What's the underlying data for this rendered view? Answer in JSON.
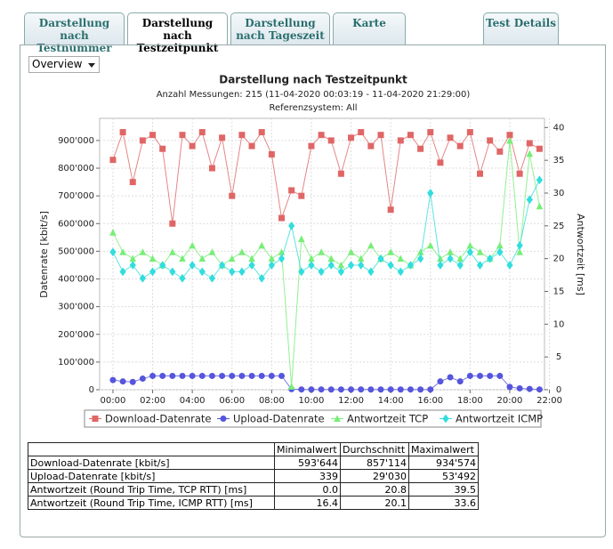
{
  "tabs": [
    "Darstellung nach Testnummer",
    "Darstellung nach Testzeitpunkt",
    "Darstellung nach Tageszeit",
    "Karte",
    "Test Details"
  ],
  "active_tab": 1,
  "dropdown": "Overview",
  "chart_data": {
    "type": "line",
    "title": "Darstellung nach Testzeitpunkt",
    "subtitle": "Anzahl Messungen: 215 (11-04-2020 00:03:19 - 11-04-2020 21:29:00)",
    "subtitle2": "Referenzsystem: All",
    "ylabel": "Datenrate [kbit/s]",
    "y2label": "Antwortzeit [ms]",
    "x": [
      0,
      0.5,
      1,
      1.5,
      2,
      2.5,
      3,
      3.5,
      4,
      4.5,
      5,
      5.5,
      6,
      6.5,
      7,
      7.5,
      8,
      8.5,
      9,
      9.5,
      10,
      10.5,
      11,
      11.5,
      12,
      12.5,
      13,
      13.5,
      14,
      14.5,
      15,
      15.5,
      16,
      16.5,
      17,
      17.5,
      18,
      18.5,
      19,
      19.5,
      20,
      20.5,
      21,
      21.5
    ],
    "xlim": [
      -0.67,
      21.75
    ],
    "xticks": [
      {
        "value": 0,
        "label": "00:00"
      },
      {
        "value": 2,
        "label": "02:00"
      },
      {
        "value": 4,
        "label": "04:00"
      },
      {
        "value": 6,
        "label": "06:00"
      },
      {
        "value": 8,
        "label": "08:00"
      },
      {
        "value": 10,
        "label": "10:00"
      },
      {
        "value": 12,
        "label": "12:00"
      },
      {
        "value": 14,
        "label": "14:00"
      },
      {
        "value": 16,
        "label": "16:00"
      },
      {
        "value": 18,
        "label": "18:00"
      },
      {
        "value": 20,
        "label": "20:00"
      },
      {
        "value": 22,
        "label": "22:00"
      }
    ],
    "ylim": [
      0,
      980000
    ],
    "yticks": [
      0,
      {
        "value": 100000,
        "label": "100'000"
      },
      {
        "value": 200000,
        "label": "200'000"
      },
      {
        "value": 300000,
        "label": "300'000"
      },
      {
        "value": 400000,
        "label": "400'000"
      },
      {
        "value": 500000,
        "label": "500'000"
      },
      {
        "value": 600000,
        "label": "600'000"
      },
      {
        "value": 700000,
        "label": "700'000"
      },
      {
        "value": 800000,
        "label": "800'000"
      },
      {
        "value": 900000,
        "label": "900'000"
      }
    ],
    "y2lim": [
      0,
      41.4
    ],
    "y2ticks": [
      0,
      5,
      10,
      15,
      20,
      25,
      30,
      35,
      40
    ],
    "grid": true,
    "legend": "bottom",
    "series": [
      {
        "name": "Download-Datenrate",
        "color": "#e06666",
        "marker": "square",
        "values": [
          830000,
          930000,
          750000,
          900000,
          920000,
          870000,
          600000,
          920000,
          880000,
          930000,
          800000,
          910000,
          700000,
          920000,
          880000,
          930000,
          850000,
          620000,
          720000,
          700000,
          880000,
          920000,
          900000,
          780000,
          910000,
          930000,
          880000,
          920000,
          650000,
          900000,
          920000,
          870000,
          930000,
          820000,
          910000,
          880000,
          930000,
          780000,
          900000,
          860000,
          920000,
          780000,
          890000,
          870000
        ]
      },
      {
        "name": "Upload-Datenrate",
        "color": "#5555dd",
        "marker": "circle",
        "values": [
          35000,
          30000,
          28000,
          40000,
          50000,
          50000,
          50000,
          50000,
          50000,
          50000,
          50000,
          50000,
          50000,
          50000,
          50000,
          50000,
          50000,
          50000,
          2000,
          1000,
          800,
          1000,
          900,
          1000,
          700,
          1000,
          900,
          800,
          1000,
          900,
          1000,
          800,
          1000,
          30000,
          45000,
          30000,
          50000,
          50000,
          50000,
          50000,
          10000,
          5000,
          3000,
          1000
        ]
      },
      {
        "name": "Antwortzeit TCP",
        "color": "#77ee77",
        "marker": "triangle",
        "axis": "y2",
        "values": [
          24,
          21,
          20,
          21,
          20,
          19,
          21,
          20,
          22,
          20,
          21,
          19,
          20,
          21,
          20,
          22,
          20,
          21,
          0.5,
          23,
          20,
          21,
          20,
          19,
          21,
          20,
          22,
          20,
          21,
          20,
          19,
          21,
          22,
          20,
          21,
          20,
          22,
          21,
          20,
          22,
          38,
          21,
          36,
          28
        ]
      },
      {
        "name": "Antwortzeit ICMP",
        "color": "#33dddd",
        "marker": "diamond",
        "axis": "y2",
        "values": [
          21,
          18,
          19,
          17,
          18,
          19,
          18,
          17,
          19,
          18,
          17,
          19,
          18,
          18,
          19,
          17,
          19,
          20,
          25,
          18,
          19,
          18,
          19,
          18,
          19,
          19,
          18,
          20,
          19,
          18,
          19,
          20,
          30,
          19,
          20,
          19,
          21,
          19,
          20,
          21,
          19,
          22,
          29,
          32
        ]
      }
    ]
  },
  "table": {
    "columns": [
      "Minimalwert",
      "Durchschnitt",
      "Maximalwert"
    ],
    "rows": [
      [
        "Download-Datenrate [kbit/s]",
        "593'644",
        "857'114",
        "934'574"
      ],
      [
        "Upload-Datenrate [kbit/s]",
        "339",
        "29'030",
        "53'492"
      ],
      [
        "Antwortzeit (Round Trip Time, TCP RTT) [ms]",
        "0.0",
        "20.8",
        "39.5"
      ],
      [
        "Antwortzeit (Round Trip Time, ICMP RTT) [ms]",
        "16.4",
        "20.1",
        "33.6"
      ]
    ]
  }
}
